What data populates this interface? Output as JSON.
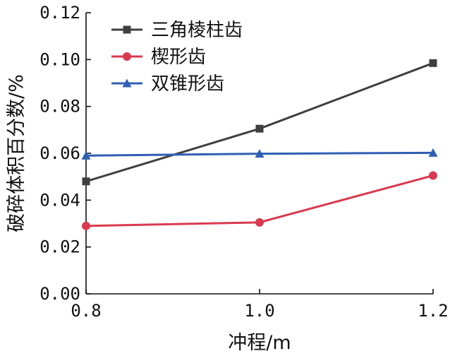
{
  "chart_data": {
    "type": "line",
    "x": [
      0.8,
      1.0,
      1.2
    ],
    "x_tick_labels": [
      "0.8",
      "1.0",
      "1.2"
    ],
    "y_tick_labels": [
      "0.00",
      "0.02",
      "0.04",
      "0.06",
      "0.08",
      "0.10",
      "0.12"
    ],
    "xlabel": "冲程/m",
    "ylabel": "破碎体积百分数/%",
    "xlim": [
      0.8,
      1.2
    ],
    "ylim": [
      0.0,
      0.12
    ],
    "grid": false,
    "legend_position": "top-left",
    "series": [
      {
        "name": "三角棱柱齿",
        "values": [
          0.048,
          0.0705,
          0.0985
        ],
        "color": "#3f3f3f",
        "marker": "square"
      },
      {
        "name": "楔形齿",
        "values": [
          0.029,
          0.0305,
          0.0505
        ],
        "color": "#d93a4f",
        "marker": "circle"
      },
      {
        "name": "双锥形齿",
        "values": [
          0.059,
          0.0598,
          0.0602
        ],
        "color": "#2f5fb3",
        "marker": "triangle"
      }
    ]
  }
}
